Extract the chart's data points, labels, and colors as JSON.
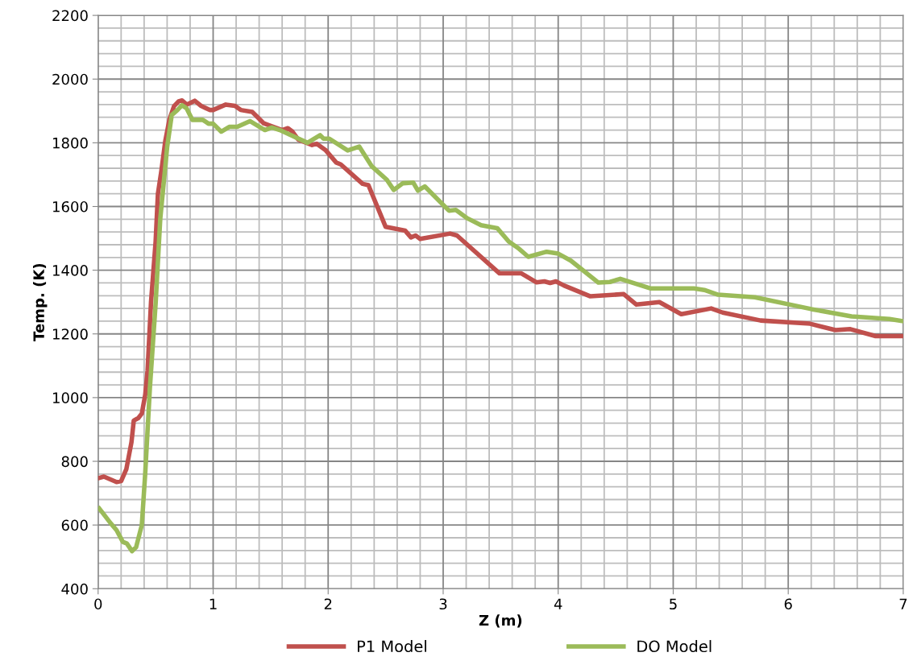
{
  "chart_data": {
    "type": "line",
    "xlabel": "Z (m)",
    "ylabel": "Temp. (K)",
    "xlim": [
      0,
      7
    ],
    "xticks": [
      0,
      1,
      2,
      3,
      4,
      5,
      6,
      7
    ],
    "ylim": [
      400,
      2200
    ],
    "yticks": [
      400,
      600,
      800,
      1000,
      1200,
      1400,
      1600,
      1800,
      2000,
      2200
    ],
    "grid": true,
    "legend": "bottom",
    "marker": "none",
    "line_style": "solid",
    "series": [
      {
        "name": "P1 Model",
        "color": "#c0504d",
        "x": [
          0.01,
          0.05,
          0.16,
          0.2,
          0.245,
          0.29,
          0.31,
          0.35,
          0.38,
          0.41,
          0.43,
          0.46,
          0.5,
          0.52,
          0.55,
          0.585,
          0.62,
          0.66,
          0.7,
          0.73,
          0.77,
          0.84,
          0.895,
          0.97,
          1.0,
          1.11,
          1.19,
          1.24,
          1.34,
          1.44,
          1.51,
          1.6,
          1.65,
          1.69,
          1.74,
          1.86,
          1.9,
          1.98,
          2.07,
          2.11,
          2.3,
          2.35,
          2.5,
          2.67,
          2.72,
          2.76,
          2.8,
          3.06,
          3.12,
          3.49,
          3.68,
          3.81,
          3.88,
          3.93,
          3.98,
          4.05,
          4.28,
          4.57,
          4.68,
          4.88,
          5.07,
          5.33,
          5.43,
          5.76,
          6.19,
          6.41,
          6.54,
          6.76,
          7.0
        ],
        "values": [
          748,
          752,
          735,
          738,
          775,
          860,
          928,
          936,
          950,
          1010,
          1085,
          1300,
          1490,
          1640,
          1712,
          1808,
          1873,
          1915,
          1930,
          1933,
          1920,
          1932,
          1916,
          1903,
          1903,
          1920,
          1916,
          1903,
          1897,
          1861,
          1852,
          1840,
          1846,
          1835,
          1810,
          1793,
          1797,
          1776,
          1738,
          1732,
          1671,
          1667,
          1536,
          1524,
          1503,
          1509,
          1498,
          1515,
          1509,
          1390,
          1390,
          1362,
          1365,
          1360,
          1365,
          1352,
          1318,
          1325,
          1292,
          1300,
          1262,
          1280,
          1267,
          1242,
          1232,
          1212,
          1215,
          1193,
          1193
        ]
      },
      {
        "name": "DO Model",
        "color": "#9bbb59",
        "x": [
          0.01,
          0.11,
          0.16,
          0.215,
          0.25,
          0.295,
          0.33,
          0.38,
          0.41,
          0.45,
          0.5,
          0.54,
          0.6,
          0.64,
          0.69,
          0.73,
          0.77,
          0.82,
          0.91,
          0.96,
          1.0,
          1.07,
          1.14,
          1.21,
          1.32,
          1.45,
          1.51,
          1.58,
          1.82,
          1.93,
          1.96,
          2.01,
          2.17,
          2.27,
          2.38,
          2.51,
          2.57,
          2.65,
          2.74,
          2.78,
          2.84,
          3.05,
          3.11,
          3.21,
          3.33,
          3.47,
          3.57,
          3.65,
          3.74,
          3.9,
          4.0,
          4.11,
          4.35,
          4.45,
          4.54,
          4.8,
          5.18,
          5.27,
          5.39,
          5.71,
          6.2,
          6.55,
          6.88,
          7.0
        ],
        "values": [
          652,
          605,
          584,
          547,
          542,
          518,
          530,
          600,
          765,
          1030,
          1295,
          1560,
          1786,
          1887,
          1903,
          1918,
          1908,
          1872,
          1872,
          1860,
          1860,
          1835,
          1850,
          1850,
          1868,
          1840,
          1848,
          1840,
          1800,
          1824,
          1813,
          1813,
          1776,
          1788,
          1726,
          1684,
          1652,
          1673,
          1675,
          1650,
          1663,
          1587,
          1589,
          1563,
          1541,
          1532,
          1490,
          1470,
          1442,
          1458,
          1452,
          1430,
          1361,
          1363,
          1373,
          1343,
          1343,
          1338,
          1323,
          1315,
          1278,
          1255,
          1247,
          1240
        ]
      }
    ]
  }
}
